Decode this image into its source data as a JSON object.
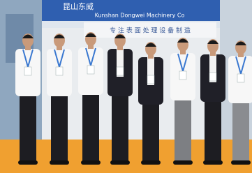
{
  "banner": {
    "chinese_name": "昆山东威",
    "english_name": "Kunshan Dongwei Machinery Co",
    "slogan": "专 注 表 面 处 理 设 备 制 造"
  }
}
